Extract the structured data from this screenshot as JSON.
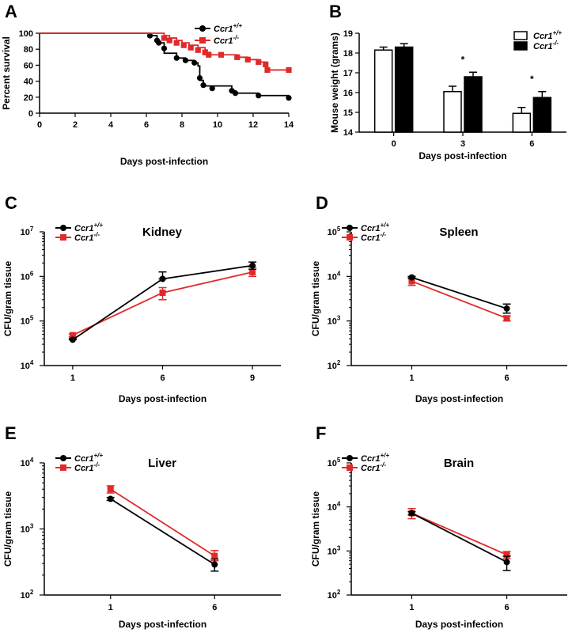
{
  "colors": {
    "wt": "#000000",
    "ko": "#e02a2a"
  },
  "chart_data": [
    {
      "id": "A",
      "type": "line",
      "panel_letter": "A",
      "xlabel": "Days post-infection",
      "ylabel": "Percent survival",
      "xlim": [
        0,
        14
      ],
      "ylim": [
        0,
        100
      ],
      "x_ticks": [
        0,
        2,
        4,
        6,
        8,
        10,
        12,
        14
      ],
      "y_ticks": [
        0,
        20,
        40,
        60,
        80,
        100
      ],
      "legend_position": "top-right",
      "series": [
        {
          "key": "wt",
          "name": "Ccr1",
          "name_sup": "+/+",
          "marker": "circle",
          "step": true,
          "steps": [
            [
              0,
              100
            ],
            [
              6.2,
              97
            ],
            [
              6.6,
              94
            ],
            [
              6.6,
              91
            ],
            [
              6.7,
              88
            ],
            [
              7,
              81
            ],
            [
              7,
              75
            ],
            [
              7.7,
              69
            ],
            [
              8.2,
              66
            ],
            [
              8.7,
              63
            ],
            [
              8.9,
              59
            ],
            [
              9,
              53
            ],
            [
              9,
              47
            ],
            [
              9,
              41
            ],
            [
              9.2,
              34
            ],
            [
              10.8,
              28
            ],
            [
              11,
              25
            ],
            [
              12.3,
              22
            ],
            [
              14,
              19
            ]
          ],
          "markers": [
            [
              6.2,
              97
            ],
            [
              6.6,
              91
            ],
            [
              6.7,
              88
            ],
            [
              7,
              81
            ],
            [
              7.7,
              69
            ],
            [
              8.2,
              66
            ],
            [
              8.7,
              63
            ],
            [
              9,
              44
            ],
            [
              9.2,
              35
            ],
            [
              9.7,
              31
            ],
            [
              10.8,
              28
            ],
            [
              11,
              25
            ],
            [
              12.3,
              22
            ],
            [
              14,
              19
            ]
          ]
        },
        {
          "key": "ko",
          "name": "Ccr1",
          "name_sup": "-/-",
          "marker": "square",
          "step": true,
          "steps": [
            [
              0,
              100
            ],
            [
              7,
              97
            ],
            [
              7.3,
              94
            ],
            [
              7.7,
              91
            ],
            [
              8,
              88
            ],
            [
              8.4,
              85
            ],
            [
              8.9,
              82
            ],
            [
              9.3,
              79
            ],
            [
              9.4,
              76
            ],
            [
              9.6,
              73
            ],
            [
              11.1,
              70
            ],
            [
              11.7,
              67
            ],
            [
              12.3,
              64
            ],
            [
              12.7,
              61
            ],
            [
              12.8,
              57
            ],
            [
              12.8,
              54
            ],
            [
              14,
              54
            ]
          ],
          "markers": [
            [
              7,
              94
            ],
            [
              7.3,
              91
            ],
            [
              7.7,
              88
            ],
            [
              8.1,
              85
            ],
            [
              8.5,
              82
            ],
            [
              8.9,
              79
            ],
            [
              9.3,
              76
            ],
            [
              9.5,
              73
            ],
            [
              10.2,
              73
            ],
            [
              11.1,
              70
            ],
            [
              11.7,
              67
            ],
            [
              12.3,
              64
            ],
            [
              12.7,
              61
            ],
            [
              12.8,
              54
            ],
            [
              14,
              54
            ]
          ]
        }
      ]
    },
    {
      "id": "B",
      "type": "bar",
      "panel_letter": "B",
      "xlabel": "Days post-infection",
      "ylabel": "Mouse weight (grams)",
      "categories": [
        "0",
        "3",
        "6"
      ],
      "ylim": [
        14,
        19
      ],
      "y_ticks": [
        14,
        15,
        16,
        17,
        18,
        19
      ],
      "legend_position": "top-right",
      "significance": [
        "",
        "*",
        "*"
      ],
      "series": [
        {
          "key": "wt",
          "name": "Ccr1",
          "name_sup": "+/+",
          "fill": "open",
          "values": [
            18.15,
            16.05,
            14.95
          ],
          "errors": [
            0.15,
            0.27,
            0.3
          ]
        },
        {
          "key": "ko",
          "name": "Ccr1",
          "name_sup": "-/-",
          "fill": "solid",
          "values": [
            18.3,
            16.8,
            15.75
          ],
          "errors": [
            0.17,
            0.23,
            0.3
          ]
        }
      ]
    },
    {
      "id": "C",
      "type": "line",
      "panel_letter": "C",
      "title": "Kidney",
      "xlabel": "Days post-infection",
      "ylabel": "CFU/gram tissue",
      "log_y": true,
      "ylim_exp": [
        4,
        7
      ],
      "categories": [
        "1",
        "6",
        "9"
      ],
      "legend_position": "top-left",
      "series": [
        {
          "key": "wt",
          "name": "Ccr1",
          "name_sup": "+/+",
          "marker": "circle",
          "values": [
            38000,
            880000,
            1750000
          ],
          "err_up": [
            2000,
            380000,
            350000
          ],
          "err_down": [
            0,
            0,
            300000
          ]
        },
        {
          "key": "ko",
          "name": "Ccr1",
          "name_sup": "-/-",
          "marker": "square",
          "values": [
            48000,
            430000,
            1250000
          ],
          "err_up": [
            3000,
            130000,
            350000
          ],
          "err_down": [
            4000,
            130000,
            250000
          ]
        }
      ]
    },
    {
      "id": "D",
      "type": "line",
      "panel_letter": "D",
      "title": "Spleen",
      "xlabel": "Days post-infection",
      "ylabel": "CFU/gram tissue",
      "log_y": true,
      "ylim_exp": [
        2,
        5
      ],
      "categories": [
        "1",
        "6"
      ],
      "legend_position": "top-left",
      "series": [
        {
          "key": "wt",
          "name": "Ccr1",
          "name_sup": "+/+",
          "marker": "circle",
          "values": [
            9500,
            1900
          ],
          "err_up": [
            500,
            500
          ],
          "err_down": [
            500,
            400
          ]
        },
        {
          "key": "ko",
          "name": "Ccr1",
          "name_sup": "-/-",
          "marker": "square",
          "values": [
            7800,
            1150
          ],
          "err_up": [
            1800,
            150
          ],
          "err_down": [
            1500,
            150
          ]
        }
      ]
    },
    {
      "id": "E",
      "type": "line",
      "panel_letter": "E",
      "title": "Liver",
      "xlabel": "Days post-infection",
      "ylabel": "CFU/gram tissue",
      "log_y": true,
      "ylim_exp": [
        2,
        4
      ],
      "categories": [
        "1",
        "6"
      ],
      "legend_position": "top-left",
      "series": [
        {
          "key": "wt",
          "name": "Ccr1",
          "name_sup": "+/+",
          "marker": "circle",
          "values": [
            2850,
            290
          ],
          "err_up": [
            150,
            60
          ],
          "err_down": [
            150,
            60
          ]
        },
        {
          "key": "ko",
          "name": "Ccr1",
          "name_sup": "-/-",
          "marker": "square",
          "values": [
            4000,
            390
          ],
          "err_up": [
            500,
            80
          ],
          "err_down": [
            500,
            60
          ]
        }
      ]
    },
    {
      "id": "F",
      "type": "line",
      "panel_letter": "F",
      "title": "Brain",
      "xlabel": "Days post-infection",
      "ylabel": "CFU/gram tissue",
      "log_y": true,
      "ylim_exp": [
        2,
        5
      ],
      "categories": [
        "1",
        "6"
      ],
      "legend_position": "top-left",
      "series": [
        {
          "key": "wt",
          "name": "Ccr1",
          "name_sup": "+/+",
          "marker": "circle",
          "values": [
            7200,
            560
          ],
          "err_up": [
            600,
            200
          ],
          "err_down": [
            600,
            200
          ]
        },
        {
          "key": "ko",
          "name": "Ccr1",
          "name_sup": "-/-",
          "marker": "square",
          "values": [
            7200,
            820
          ],
          "err_up": [
            2000,
            150
          ],
          "err_down": [
            1800,
            150
          ]
        }
      ]
    }
  ]
}
